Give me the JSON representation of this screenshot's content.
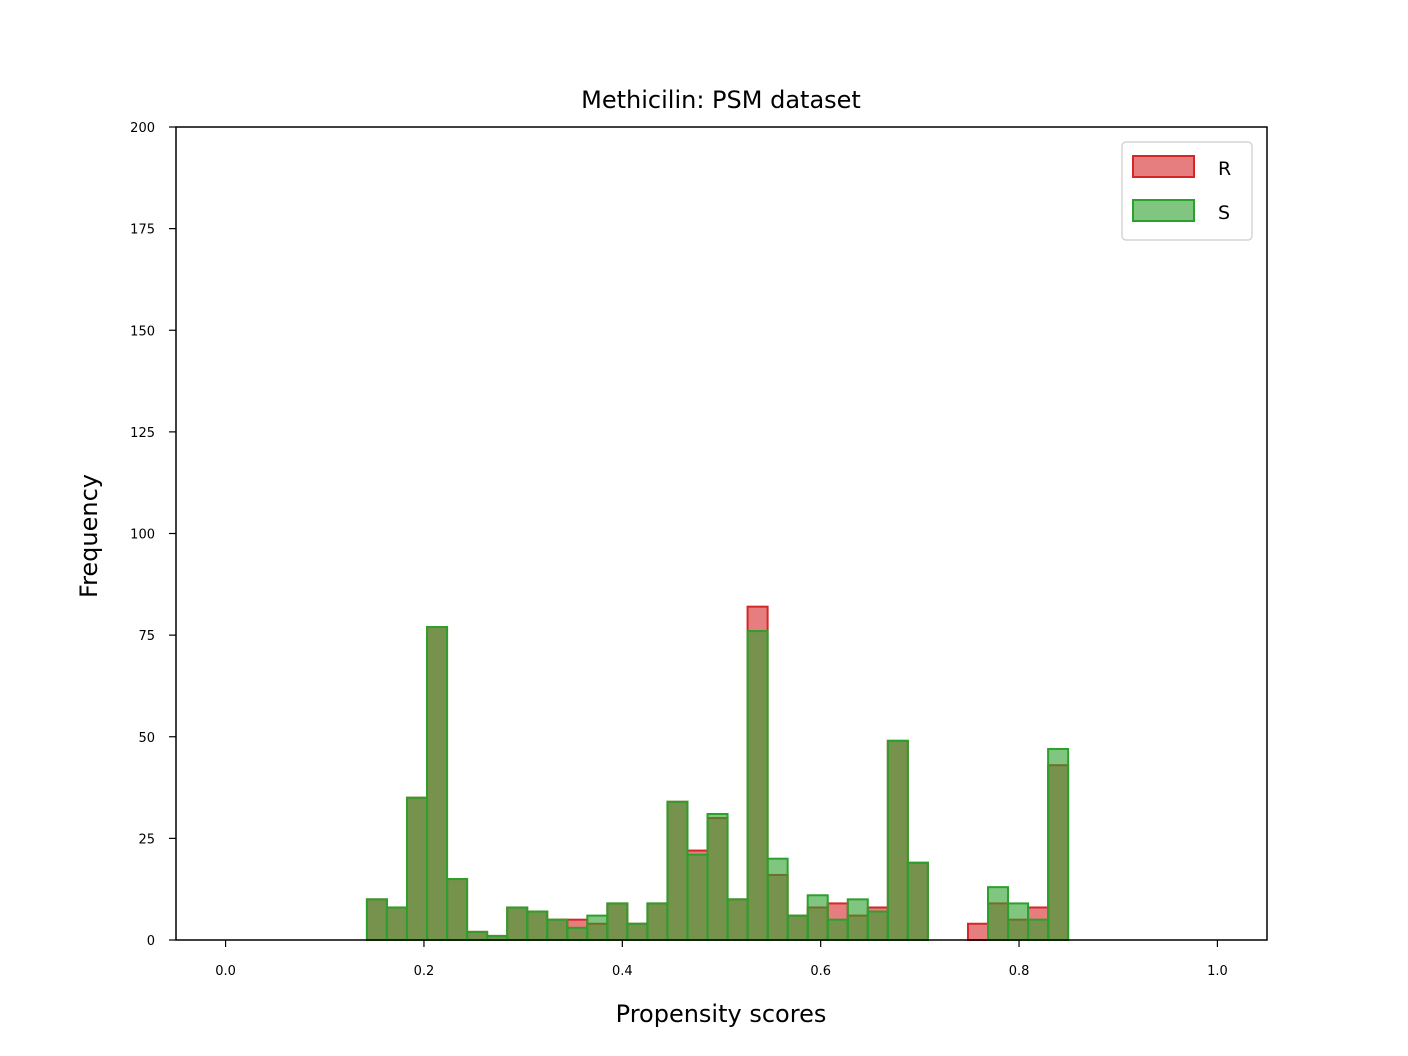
{
  "chart_data": {
    "type": "bar",
    "title": "Methicilin: PSM dataset",
    "xlabel": "Propensity scores",
    "ylabel": "Frequency",
    "xlim": [
      -0.05,
      1.05
    ],
    "ylim": [
      0,
      200
    ],
    "xticks": [
      0.0,
      0.2,
      0.4,
      0.6,
      0.8,
      1.0
    ],
    "xtick_labels": [
      "0.0",
      "0.2",
      "0.4",
      "0.6",
      "0.8",
      "1.0"
    ],
    "yticks": [
      0,
      25,
      50,
      75,
      100,
      125,
      150,
      175,
      200
    ],
    "ytick_labels": [
      "0",
      "25",
      "50",
      "75",
      "100",
      "125",
      "150",
      "175",
      "200"
    ],
    "legend_position": "top-right",
    "bin_start": 0.1425,
    "bin_width": 0.0202,
    "series": [
      {
        "name": "R",
        "color": "#d62728",
        "values": [
          10,
          8,
          35,
          77,
          15,
          2,
          1,
          8,
          7,
          5,
          5,
          4,
          9,
          4,
          9,
          34,
          22,
          30,
          10,
          82,
          16,
          6,
          8,
          9,
          6,
          8,
          49,
          19,
          0,
          0,
          4,
          9,
          5,
          8,
          43
        ]
      },
      {
        "name": "S",
        "color": "#2ca02c",
        "values": [
          10,
          8,
          35,
          77,
          15,
          2,
          1,
          8,
          7,
          5,
          3,
          6,
          9,
          4,
          9,
          34,
          21,
          31,
          10,
          76,
          20,
          6,
          11,
          5,
          10,
          7,
          49,
          19,
          0,
          0,
          0,
          13,
          9,
          5,
          47
        ]
      }
    ]
  }
}
